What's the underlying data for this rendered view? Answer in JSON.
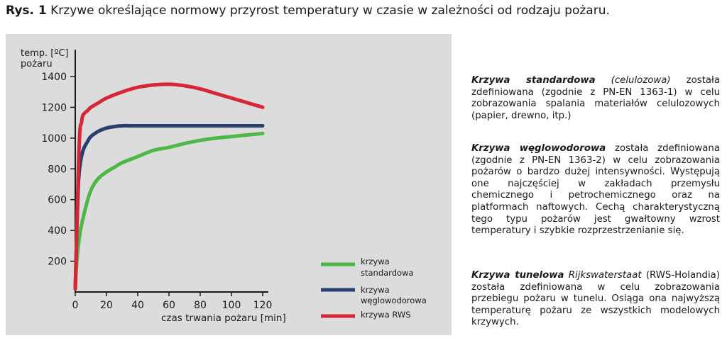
{
  "caption": {
    "number": "Rys. 1",
    "text": "Krzywe określające normowy przyrost temperatury w czasie w zależności od rodzaju pożaru."
  },
  "chart_data": {
    "type": "line",
    "title": "",
    "ylabel_line1": "temp. [ºC]",
    "ylabel_line2": "pożaru",
    "xlabel": "czas trwania pożaru [min]",
    "xlim": [
      0,
      120
    ],
    "ylim": [
      0,
      1400
    ],
    "xticks": [
      0,
      20,
      40,
      60,
      80,
      100,
      120
    ],
    "yticks": [
      200,
      400,
      600,
      800,
      1000,
      1200,
      1400
    ],
    "grid": false,
    "legend_position": "bottom-right",
    "series": [
      {
        "name": "krzywa standardowa",
        "legend_line1": "krzywa",
        "legend_line2": "standardowa",
        "color": "#4cb848",
        "x": [
          0,
          1,
          3,
          5,
          8,
          10,
          12,
          15,
          20,
          25,
          30,
          40,
          50,
          60,
          70,
          80,
          90,
          100,
          110,
          120
        ],
        "y": [
          20,
          200,
          380,
          480,
          600,
          660,
          700,
          740,
          780,
          810,
          840,
          880,
          920,
          940,
          965,
          985,
          1000,
          1010,
          1020,
          1030
        ]
      },
      {
        "name": "krzywa węglowodorowa",
        "legend_line1": "krzywa",
        "legend_line2": "węglowodorowa",
        "color": "#263f6e",
        "x": [
          0,
          1,
          2,
          3,
          5,
          8,
          10,
          15,
          20,
          25,
          30,
          40,
          60,
          80,
          100,
          120
        ],
        "y": [
          20,
          400,
          700,
          820,
          920,
          980,
          1010,
          1045,
          1065,
          1075,
          1080,
          1080,
          1080,
          1080,
          1080,
          1080
        ]
      },
      {
        "name": "krzywa RWS",
        "legend_line1": "krzywa RWS",
        "legend_line2": "",
        "color": "#d62638",
        "x": [
          0,
          1,
          2,
          3,
          4,
          5,
          8,
          10,
          15,
          20,
          30,
          40,
          50,
          60,
          70,
          80,
          90,
          100,
          110,
          120
        ],
        "y": [
          20,
          400,
          800,
          1050,
          1100,
          1150,
          1180,
          1200,
          1230,
          1260,
          1300,
          1330,
          1345,
          1350,
          1340,
          1320,
          1290,
          1260,
          1230,
          1200
        ]
      }
    ]
  },
  "descriptions": [
    {
      "parts": [
        {
          "text": "Krzywa standardowa",
          "style": "bi"
        },
        {
          "text": " ",
          "style": ""
        },
        {
          "text": "(celulozowa)",
          "style": "it"
        },
        {
          "text": " została zdefiniowana (zgodnie z PN-EN 1363-1) w celu zobrazowania spalania materiałów celulozowych (papier, drewno, itp.)",
          "style": ""
        }
      ]
    },
    {
      "parts": [
        {
          "text": "Krzywa węglowodorowa",
          "style": "bi"
        },
        {
          "text": " została zdefiniowana (zgodnie z PN-EN 1363-2) w celu zobrazowania pożarów o bardzo dużej intensywności. Występują one najczęściej w zakładach przemysłu chemicznego i petrochemicznego oraz na platformach naftowych. Cechą charakterystyczną tego typu pożarów jest gwałtowny wzrost temperatury i szybkie rozprzestrzenianie się.",
          "style": ""
        }
      ]
    },
    {
      "parts": [
        {
          "text": "Krzywa tunelowa",
          "style": "bi"
        },
        {
          "text": " ",
          "style": ""
        },
        {
          "text": "Rijkswaterstaat",
          "style": "it"
        },
        {
          "text": " (RWS-Holandia) została zdefiniowana w celu zobrazowania przebiegu pożaru w tunelu. Osiąga ona najwyższą temperaturę pożaru ze wszystkich modelowych krzywych.",
          "style": ""
        }
      ]
    }
  ]
}
